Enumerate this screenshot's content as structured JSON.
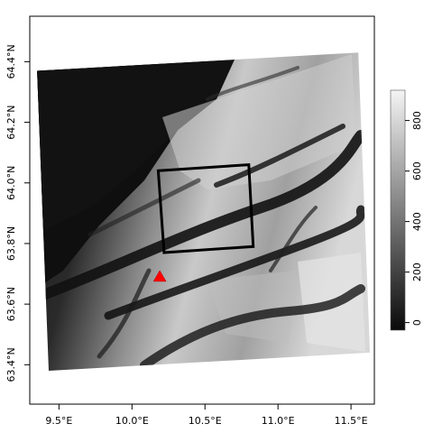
{
  "map": {
    "x_axis_ticks": [
      "9.5°E",
      "10.0°E",
      "10.5°E",
      "11.0°E",
      "11.5°E"
    ],
    "y_axis_ticks": [
      "63.4°N",
      "63.6°N",
      "63.8°N",
      "64.0°N",
      "64.2°N",
      "64.4°N"
    ],
    "x_tick_values": [
      9.5,
      10.0,
      10.5,
      11.0,
      11.5
    ],
    "y_tick_values": [
      63.4,
      63.6,
      63.8,
      64.0,
      64.2,
      64.4
    ],
    "xlim": [
      9.3,
      11.66
    ],
    "ylim": [
      63.27,
      64.55
    ],
    "frame": true
  },
  "raster": {
    "description": "grayscale elevation raster, rotated footprint",
    "corners_lonlat": [
      [
        9.35,
        64.37
      ],
      [
        11.55,
        64.43
      ],
      [
        11.63,
        63.44
      ],
      [
        9.43,
        63.38
      ]
    ]
  },
  "study_box": {
    "corners_lonlat": [
      [
        10.18,
        64.04
      ],
      [
        10.8,
        64.06
      ],
      [
        10.83,
        63.79
      ],
      [
        10.22,
        63.77
      ]
    ],
    "stroke_color": "#000000"
  },
  "marker": {
    "symbol": "triangle",
    "lon": 10.19,
    "lat": 63.69,
    "color": "#ff0000"
  },
  "colorbar": {
    "ticks": [
      "0",
      "200",
      "400",
      "600",
      "800"
    ],
    "tick_values": [
      0,
      200,
      400,
      600,
      800
    ],
    "range": [
      -30,
      920
    ],
    "colors": [
      "#0a0a0a",
      "#f4f4f4"
    ]
  }
}
